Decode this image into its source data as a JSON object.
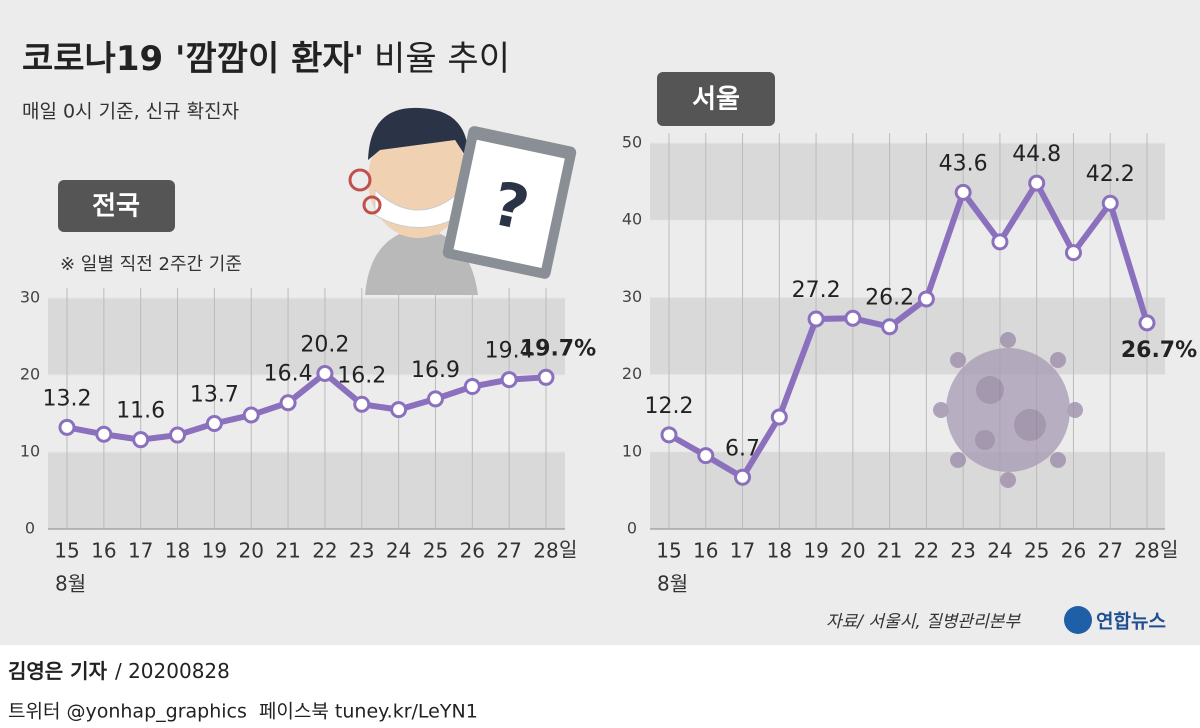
{
  "header": {
    "title": [
      "코로나19 '깜깜이 환자'",
      "비율 추이"
    ],
    "subtitle": "매일 0시 기준, 신규 확진자"
  },
  "chart_data": [
    {
      "type": "line",
      "label": "전국",
      "note": "※ 일별 직전 2주간 기준",
      "categories": [
        "15",
        "16",
        "17",
        "18",
        "19",
        "20",
        "21",
        "22",
        "23",
        "24",
        "25",
        "26",
        "27",
        "28"
      ],
      "x_unit": "일",
      "x_month": "8월",
      "series": [
        {
          "color": "#8a70bd",
          "values": [
            13.2,
            12.3,
            11.6,
            12.2,
            13.7,
            14.8,
            16.4,
            20.2,
            16.2,
            15.5,
            16.9,
            18.5,
            19.4,
            19.7
          ],
          "value_labels": [
            "13.2",
            null,
            "11.6",
            null,
            "13.7",
            null,
            "16.4",
            "20.2",
            "16.2",
            null,
            "16.9",
            null,
            "19.4",
            "19.7%"
          ]
        }
      ],
      "ylim": [
        0,
        30
      ],
      "yticks": [
        0,
        10,
        20,
        30
      ]
    },
    {
      "type": "line",
      "label": "서울",
      "categories": [
        "15",
        "16",
        "17",
        "18",
        "19",
        "20",
        "21",
        "22",
        "23",
        "24",
        "25",
        "26",
        "27",
        "28"
      ],
      "x_unit": "일",
      "x_month": "8월",
      "series": [
        {
          "color": "#8a70bd",
          "values": [
            12.2,
            9.5,
            6.7,
            14.5,
            27.2,
            27.3,
            26.2,
            29.8,
            43.6,
            37.2,
            44.8,
            35.8,
            42.2,
            26.7
          ],
          "value_labels": [
            "12.2",
            null,
            "6.7",
            null,
            "27.2",
            null,
            "26.2",
            null,
            "43.6",
            null,
            "44.8",
            null,
            "42.2",
            "26.7%"
          ]
        }
      ],
      "ylim": [
        0,
        50
      ],
      "yticks": [
        0,
        10,
        20,
        30,
        40,
        50
      ]
    }
  ],
  "footer": {
    "source": "자료/ 서울시, 질병관리본부",
    "logo": "연합뉴스",
    "author": "김영은 기자",
    "date": "/ 20200828",
    "social": "트위터 @yonhap_graphics  페이스북 tuney.kr/LeYN1"
  }
}
